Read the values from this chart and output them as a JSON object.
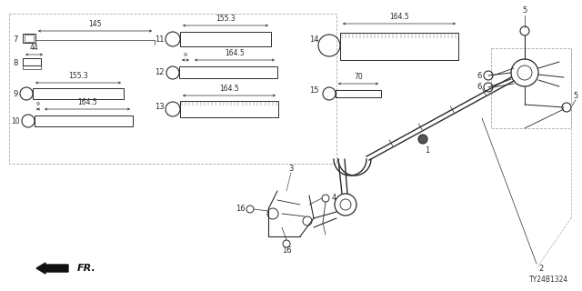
{
  "bg_color": "#ffffff",
  "line_color": "#2a2a2a",
  "dim_color": "#2a2a2a",
  "diagram_id": "TY24B1324"
}
